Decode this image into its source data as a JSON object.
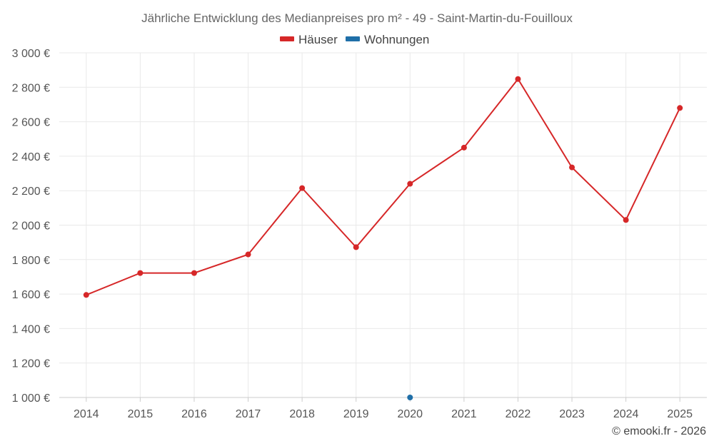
{
  "chart_data": {
    "type": "line",
    "title": "Jährliche Entwicklung des Medianpreises pro m² - 49 - Saint-Martin-du-Fouilloux",
    "categories": [
      "2014",
      "2015",
      "2016",
      "2017",
      "2018",
      "2019",
      "2020",
      "2021",
      "2022",
      "2023",
      "2024",
      "2025"
    ],
    "series": [
      {
        "name": "Häuser",
        "color": "#d62728",
        "values": [
          1595,
          1722,
          1722,
          1830,
          2215,
          1872,
          2240,
          2450,
          2848,
          2335,
          2030,
          2680
        ]
      },
      {
        "name": "Wohnungen",
        "color": "#1f6fa8",
        "values": [
          null,
          null,
          null,
          null,
          null,
          null,
          1000,
          null,
          null,
          null,
          null,
          null
        ]
      }
    ],
    "ylim": [
      1000,
      3000
    ],
    "yticks": [
      1000,
      1200,
      1400,
      1600,
      1800,
      2000,
      2200,
      2400,
      2600,
      2800,
      3000
    ],
    "ytick_labels": [
      "1 000 €",
      "1 200 €",
      "1 400 €",
      "1 600 €",
      "1 800 €",
      "2 000 €",
      "2 200 €",
      "2 400 €",
      "2 600 €",
      "2 800 €",
      "3 000 €"
    ],
    "xlabel": "",
    "ylabel": "",
    "grid": true,
    "legend_position": "top-center"
  },
  "credit": "© emooki.fr - 2026"
}
